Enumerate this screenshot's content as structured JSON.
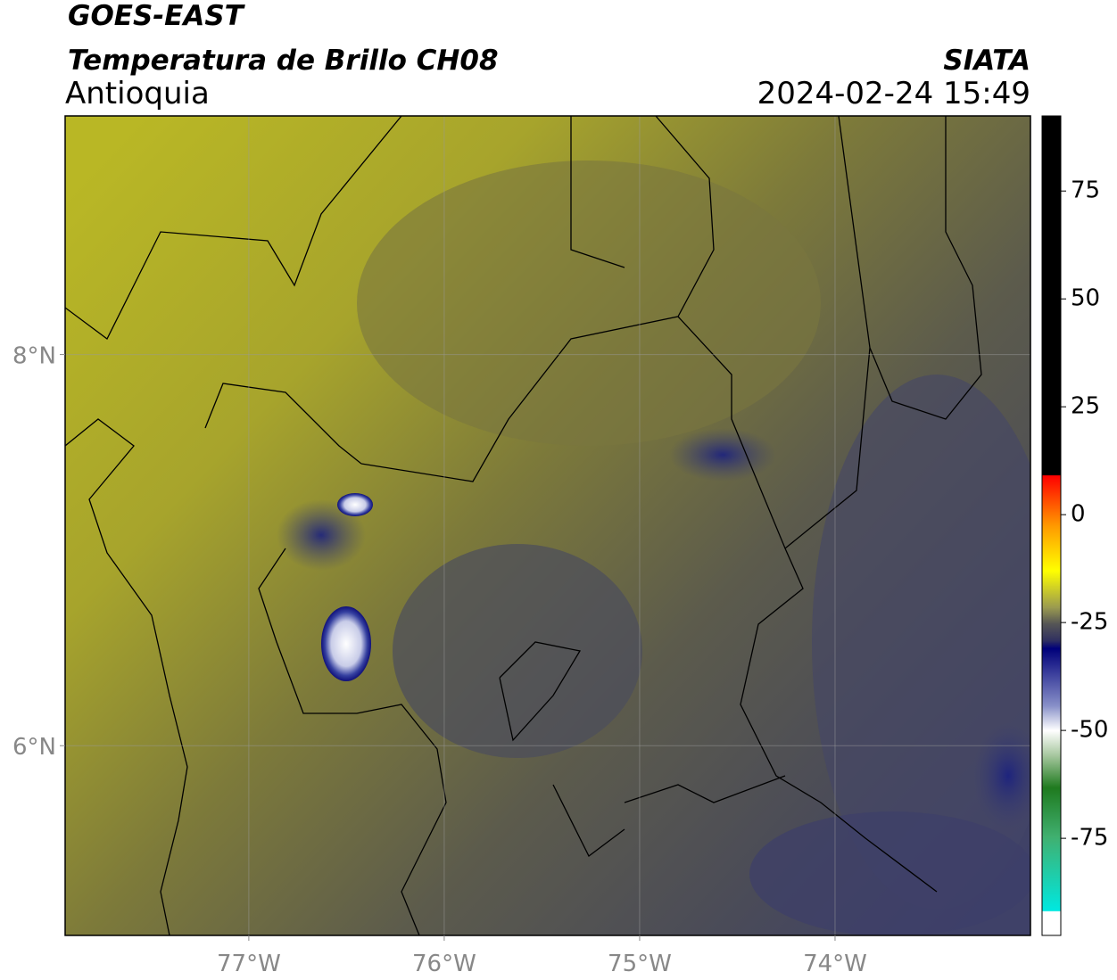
{
  "header": {
    "title": "GOES-EAST",
    "subtitle": "Temperatura de Brillo CH08",
    "region": "Antioquia",
    "source": "SIATA",
    "datetime": "2024-02-24 15:49"
  },
  "map": {
    "lonlim": [
      -77.94,
      -73.0
    ],
    "latlim": [
      5.03,
      9.22
    ],
    "lat_ticks": [
      {
        "value": 8,
        "label": "8°N"
      },
      {
        "value": 6,
        "label": "6°N"
      }
    ],
    "lon_ticks": [
      {
        "value": -77,
        "label": "77°W"
      },
      {
        "value": -76,
        "label": "76°W"
      },
      {
        "value": -75,
        "label": "75°W"
      },
      {
        "value": -74,
        "label": "74°W"
      }
    ],
    "grid": true
  },
  "colorbar": {
    "lim": [
      -97.5,
      92.4
    ],
    "ticks": [
      75,
      50,
      25,
      0,
      -25,
      -50,
      -75
    ]
  }
}
